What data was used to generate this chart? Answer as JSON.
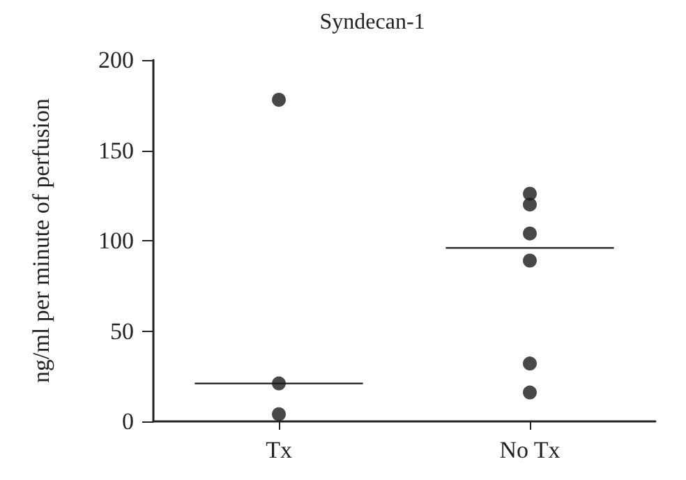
{
  "chart_data": {
    "type": "scatter",
    "title": "Syndecan-1",
    "ylabel": "ng/ml per minute of perfusion",
    "categories": [
      "Tx",
      "No Tx"
    ],
    "series": [
      {
        "color": "#1a1a1a",
        "x": [
          "Tx",
          "Tx",
          "Tx",
          "No Tx",
          "No Tx",
          "No Tx",
          "No Tx",
          "No Tx",
          "No Tx"
        ],
        "values": [
          178,
          21,
          4,
          126,
          120,
          104,
          89,
          32,
          16
        ]
      },
      {
        "type": "box",
        "color": "#1a1a1a",
        "boxes": [
          {
            "low": 21,
            "q1": 21,
            "median": 21,
            "q3": 21,
            "high": 21
          },
          {
            "low": 96,
            "q1": 96,
            "median": 96,
            "q3": 96,
            "high": 96
          }
        ]
      }
    ],
    "ylim": [
      0,
      200
    ],
    "yticks": [
      0,
      50,
      100,
      150,
      200
    ],
    "grid": false,
    "marker": "circle"
  }
}
